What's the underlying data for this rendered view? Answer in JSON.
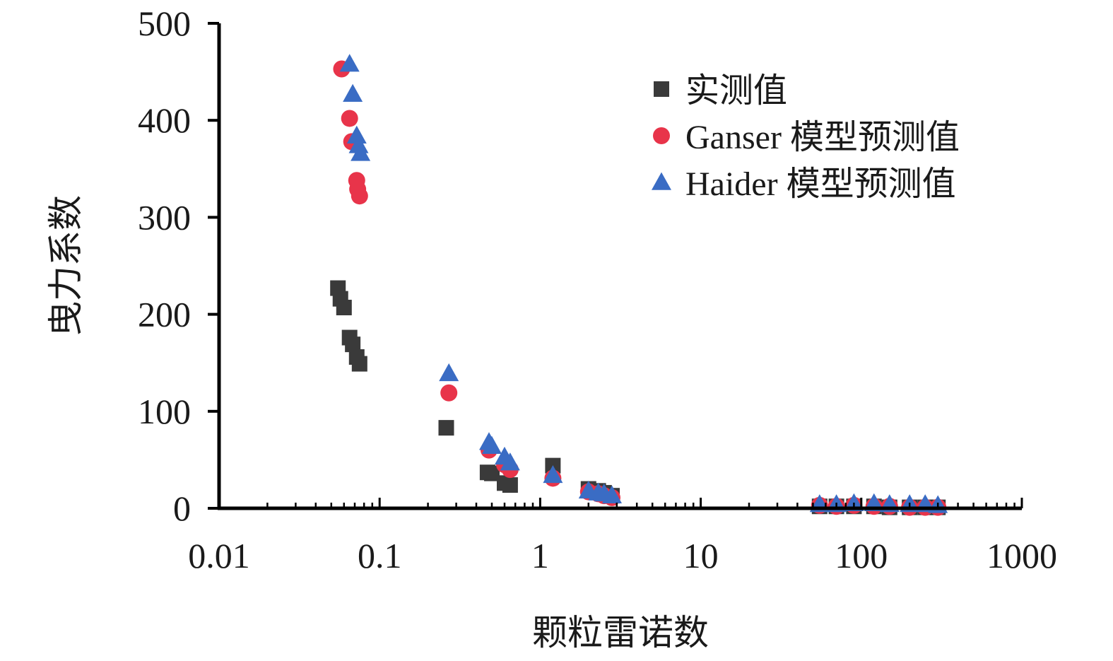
{
  "chart_data": {
    "type": "scatter",
    "title": "",
    "xlabel": "颗粒雷诺数",
    "ylabel": "曳力系数",
    "xscale": "log",
    "xlim": [
      0.01,
      1000
    ],
    "ylim": [
      0,
      500
    ],
    "xticks": [
      "0.01",
      "0.1",
      "1",
      "10",
      "100",
      "1000"
    ],
    "yticks": [
      "0",
      "100",
      "200",
      "300",
      "400",
      "500"
    ],
    "grid": false,
    "legend_position": "top-right",
    "series": [
      {
        "name": "实测值",
        "marker": "square",
        "color": "#3a3a3a",
        "points": [
          [
            0.055,
            227
          ],
          [
            0.057,
            216
          ],
          [
            0.06,
            207
          ],
          [
            0.065,
            176
          ],
          [
            0.068,
            169
          ],
          [
            0.072,
            156
          ],
          [
            0.075,
            149
          ],
          [
            0.26,
            83
          ],
          [
            0.47,
            37
          ],
          [
            0.5,
            36
          ],
          [
            0.6,
            26
          ],
          [
            0.65,
            24
          ],
          [
            1.2,
            44
          ],
          [
            2.0,
            20
          ],
          [
            2.3,
            18
          ],
          [
            2.5,
            16
          ],
          [
            2.8,
            13
          ],
          [
            55,
            2
          ],
          [
            70,
            2
          ],
          [
            90,
            2
          ],
          [
            120,
            2
          ],
          [
            150,
            1
          ],
          [
            200,
            1
          ],
          [
            250,
            1
          ],
          [
            300,
            1
          ]
        ]
      },
      {
        "name": "Ganser 模型预测值",
        "marker": "circle",
        "color": "#e8344a",
        "points": [
          [
            0.058,
            453
          ],
          [
            0.065,
            402
          ],
          [
            0.067,
            378
          ],
          [
            0.072,
            338
          ],
          [
            0.073,
            329
          ],
          [
            0.075,
            322
          ],
          [
            0.27,
            119
          ],
          [
            0.48,
            60
          ],
          [
            0.6,
            45
          ],
          [
            0.65,
            40
          ],
          [
            1.2,
            31
          ],
          [
            2.0,
            17
          ],
          [
            2.3,
            15
          ],
          [
            2.5,
            13
          ],
          [
            2.8,
            11
          ],
          [
            55,
            3
          ],
          [
            70,
            2
          ],
          [
            90,
            3
          ],
          [
            120,
            2
          ],
          [
            150,
            2
          ],
          [
            200,
            1
          ],
          [
            250,
            1
          ],
          [
            300,
            1
          ]
        ]
      },
      {
        "name": "Haider 模型预测值",
        "marker": "triangle",
        "color": "#3a6cc4",
        "points": [
          [
            0.065,
            458
          ],
          [
            0.068,
            427
          ],
          [
            0.072,
            384
          ],
          [
            0.074,
            374
          ],
          [
            0.076,
            366
          ],
          [
            0.27,
            139
          ],
          [
            0.48,
            68
          ],
          [
            0.5,
            64
          ],
          [
            0.6,
            53
          ],
          [
            0.65,
            47
          ],
          [
            1.2,
            34
          ],
          [
            2.0,
            18
          ],
          [
            2.3,
            16
          ],
          [
            2.5,
            15
          ],
          [
            2.8,
            13
          ],
          [
            55,
            4
          ],
          [
            70,
            4
          ],
          [
            90,
            5
          ],
          [
            120,
            5
          ],
          [
            150,
            4
          ],
          [
            200,
            4
          ],
          [
            250,
            4
          ],
          [
            300,
            3
          ]
        ]
      }
    ]
  }
}
